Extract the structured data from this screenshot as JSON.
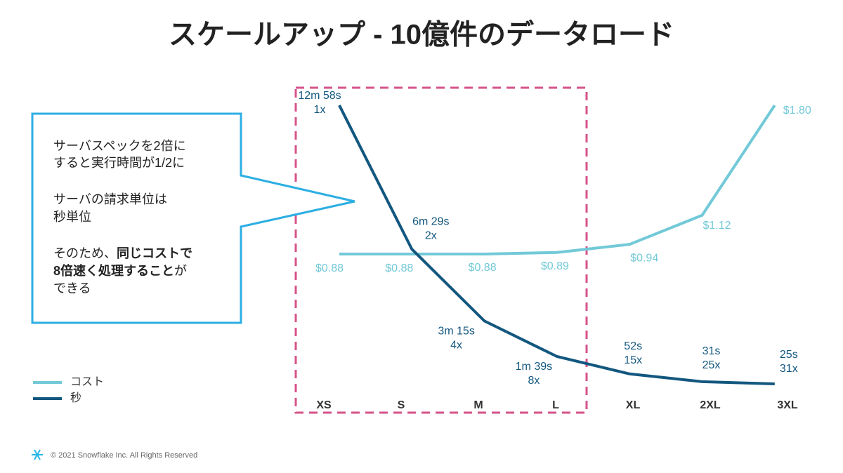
{
  "chart_data": {
    "type": "line",
    "title": "スケールアップ - 10億件のデータロード",
    "categories": [
      "XS",
      "S",
      "M",
      "L",
      "XL",
      "2XL",
      "3XL"
    ],
    "series": [
      {
        "name": "コスト",
        "color": "#72c9d7",
        "values": [
          0.88,
          0.88,
          0.88,
          0.89,
          0.94,
          1.12,
          1.8
        ],
        "value_labels": [
          "$0.88",
          "$0.88",
          "$0.88",
          "$0.89",
          "$0.94",
          "$1.12",
          "$1.80"
        ]
      },
      {
        "name": "秒",
        "color": "#13577f",
        "values": [
          778,
          389,
          195,
          99,
          52,
          31,
          25
        ],
        "value_labels": [
          "12m 58s",
          "6m 29s",
          "3m 15s",
          "1m 39s",
          "52s",
          "31s",
          "25s"
        ],
        "speedup_labels": [
          "1x",
          "2x",
          "4x",
          "8x",
          "15x",
          "25x",
          "31x"
        ]
      }
    ]
  },
  "callout": {
    "lines": [
      [
        {
          "text": "サーバスペックを2倍に"
        }
      ],
      [
        {
          "text": "すると実行時間が1/2に"
        }
      ],
      [
        {
          "text": "サーバの請求単位は"
        }
      ],
      [
        {
          "text": "秒単位"
        }
      ],
      [
        {
          "text": "そのため、"
        },
        {
          "text": "同じコストで",
          "bold": true
        }
      ],
      [
        {
          "text": "8倍速く処理すること",
          "bold": true
        },
        {
          "text": "が"
        }
      ],
      [
        {
          "text": "できる"
        }
      ]
    ]
  },
  "footer": "© 2021 Snowflake Inc. All Rights Reserved"
}
